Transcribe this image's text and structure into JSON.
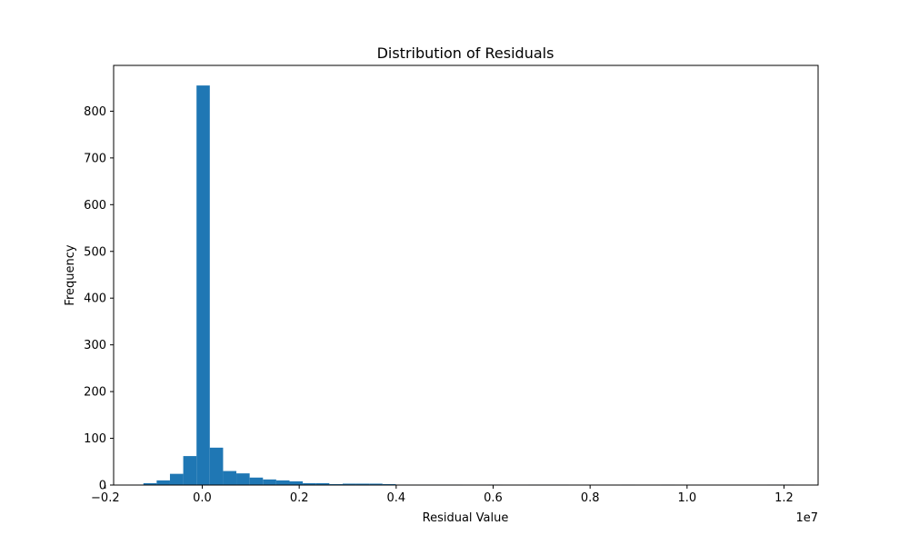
{
  "chart_data": {
    "type": "bar",
    "title": "Distribution of Residuals",
    "xlabel": "Residual Value",
    "ylabel": "Frequency",
    "x_offset_text": "1e7",
    "xlim": [
      -0.1828,
      1.2703
    ],
    "ylim": [
      0,
      898
    ],
    "x_ticks": [
      -0.2,
      0.0,
      0.2,
      0.4,
      0.6,
      0.8,
      1.0,
      1.2
    ],
    "x_tick_labels": [
      "−0.2",
      "0.0",
      "0.2",
      "0.4",
      "0.6",
      "0.8",
      "1.0",
      "1.2"
    ],
    "y_ticks": [
      0,
      100,
      200,
      300,
      400,
      500,
      600,
      700,
      800
    ],
    "y_tick_labels": [
      "0",
      "100",
      "200",
      "300",
      "400",
      "500",
      "600",
      "700",
      "800"
    ],
    "bin_edges": [
      -0.1488,
      -0.1214,
      -0.094,
      -0.0666,
      -0.0392,
      -0.0118,
      0.0156,
      0.043,
      0.0704,
      0.0978,
      0.1252,
      0.1526,
      0.18,
      0.2074,
      0.2348,
      0.2622,
      0.2896,
      0.317,
      0.3444,
      0.3718,
      0.3992,
      0.4266,
      0.454,
      0.4814,
      0.5088,
      0.5362,
      0.5636,
      0.591,
      0.6184,
      0.6458,
      0.6732,
      0.7006,
      0.728,
      0.7554,
      0.7828,
      0.8102,
      0.8376,
      0.865,
      0.8924,
      0.9198,
      0.9472,
      0.9746,
      1.002,
      1.0294,
      1.0568,
      1.0842,
      1.1116,
      1.139,
      1.1664,
      1.1938,
      1.2212
    ],
    "values": [
      1,
      4,
      10,
      24,
      62,
      855,
      80,
      30,
      25,
      16,
      12,
      10,
      8,
      4,
      4,
      2,
      3,
      3,
      3,
      2,
      1,
      1,
      1,
      1,
      1,
      0,
      0,
      1,
      0,
      0,
      1,
      1,
      1,
      0,
      0,
      0,
      0,
      1,
      0,
      0,
      1,
      0,
      0,
      0,
      0,
      0,
      0,
      0,
      1,
      1
    ],
    "bar_color": "#1f77b4",
    "grid": false,
    "legend": "none"
  }
}
